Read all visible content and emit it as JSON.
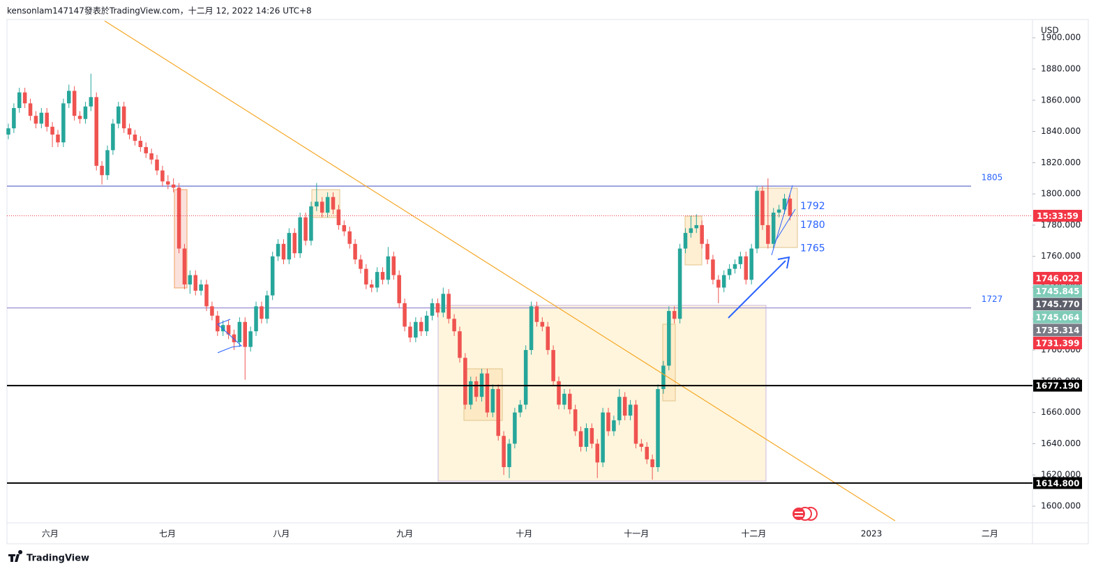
{
  "header": "kensonlam147147發表於TradingView.com，十二月 12, 2022 14:26 UTC+8",
  "footer": "TradingView",
  "chart_data": {
    "type": "candlestick",
    "currency": "USD",
    "up_color": "#26a69a",
    "down_color": "#ef5350",
    "xlim": [
      -0.25,
      185.8
    ],
    "ylim": [
      1589.3,
      1910.8
    ],
    "xticks": [
      {
        "value": 7.6,
        "label": "六月"
      },
      {
        "value": 28.9,
        "label": "七月"
      },
      {
        "value": 49.6,
        "label": "八月"
      },
      {
        "value": 72.0,
        "label": "九月"
      },
      {
        "value": 93.7,
        "label": "十月"
      },
      {
        "value": 114.1,
        "label": "十一月"
      },
      {
        "value": 135.4,
        "label": "十二月"
      },
      {
        "value": 156.8,
        "label": "2023"
      },
      {
        "value": 178.3,
        "label": "二月"
      }
    ],
    "yticks": [
      {
        "value": 1600,
        "label": "1600.000"
      },
      {
        "value": 1620,
        "label": "1620.000"
      },
      {
        "value": 1640,
        "label": "1640.000"
      },
      {
        "value": 1660,
        "label": "1660.000"
      },
      {
        "value": 1680,
        "label": "1680.000"
      },
      {
        "value": 1700,
        "label": "1700.000"
      },
      {
        "value": 1720,
        "label": "1720.000"
      },
      {
        "value": 1740,
        "label": "1740.000"
      },
      {
        "value": 1760,
        "label": "1760.000"
      },
      {
        "value": 1780,
        "label": "1780.000"
      },
      {
        "value": 1800,
        "label": "1800.000"
      },
      {
        "value": 1820,
        "label": "1820.000"
      },
      {
        "value": 1840,
        "label": "1840.000"
      },
      {
        "value": 1860,
        "label": "1860.000"
      },
      {
        "value": 1880,
        "label": "1880.000"
      },
      {
        "value": 1900,
        "label": "1900.000"
      }
    ],
    "ohlc": [
      [
        1838,
        1845,
        1835,
        1842
      ],
      [
        1842,
        1858,
        1839,
        1855
      ],
      [
        1855,
        1868,
        1852,
        1865
      ],
      [
        1865,
        1868,
        1855,
        1858
      ],
      [
        1858,
        1861,
        1847,
        1850
      ],
      [
        1850,
        1853,
        1842,
        1845
      ],
      [
        1845,
        1855,
        1842,
        1852
      ],
      [
        1852,
        1855,
        1840,
        1843
      ],
      [
        1843,
        1846,
        1830,
        1838
      ],
      [
        1838,
        1841,
        1830,
        1833
      ],
      [
        1833,
        1861,
        1830,
        1858
      ],
      [
        1858,
        1870,
        1855,
        1866
      ],
      [
        1866,
        1869,
        1847,
        1850
      ],
      [
        1850,
        1853,
        1845,
        1848
      ],
      [
        1848,
        1859,
        1845,
        1856
      ],
      [
        1856,
        1877,
        1853,
        1862
      ],
      [
        1862,
        1865,
        1815,
        1818
      ],
      [
        1818,
        1821,
        1806,
        1812
      ],
      [
        1812,
        1831,
        1809,
        1828
      ],
      [
        1828,
        1848,
        1825,
        1845
      ],
      [
        1845,
        1859,
        1842,
        1856
      ],
      [
        1856,
        1859,
        1839,
        1842
      ],
      [
        1842,
        1845,
        1835,
        1838
      ],
      [
        1838,
        1841,
        1831,
        1834
      ],
      [
        1834,
        1837,
        1827,
        1830
      ],
      [
        1830,
        1833,
        1823,
        1826
      ],
      [
        1826,
        1829,
        1819,
        1822
      ],
      [
        1822,
        1825,
        1812,
        1815
      ],
      [
        1815,
        1818,
        1805,
        1808
      ],
      [
        1808,
        1812,
        1803,
        1806
      ],
      [
        1806,
        1810,
        1801,
        1804
      ],
      [
        1804,
        1807,
        1762,
        1765
      ],
      [
        1765,
        1768,
        1739,
        1742
      ],
      [
        1742,
        1751,
        1736,
        1748
      ],
      [
        1748,
        1751,
        1735,
        1738
      ],
      [
        1738,
        1745,
        1735,
        1742
      ],
      [
        1742,
        1745,
        1725,
        1728
      ],
      [
        1728,
        1731,
        1719,
        1722
      ],
      [
        1722,
        1725,
        1709,
        1712
      ],
      [
        1712,
        1719,
        1709,
        1716
      ],
      [
        1716,
        1719,
        1707,
        1710
      ],
      [
        1710,
        1713,
        1700,
        1705
      ],
      [
        1705,
        1721,
        1702,
        1718
      ],
      [
        1718,
        1721,
        1681,
        1702
      ],
      [
        1702,
        1715,
        1699,
        1712
      ],
      [
        1712,
        1731,
        1709,
        1728
      ],
      [
        1728,
        1731,
        1717,
        1720
      ],
      [
        1720,
        1738,
        1717,
        1735
      ],
      [
        1735,
        1763,
        1732,
        1760
      ],
      [
        1760,
        1771,
        1757,
        1768
      ],
      [
        1768,
        1771,
        1755,
        1758
      ],
      [
        1758,
        1778,
        1755,
        1775
      ],
      [
        1775,
        1778,
        1759,
        1762
      ],
      [
        1762,
        1788,
        1759,
        1785
      ],
      [
        1785,
        1788,
        1767,
        1770
      ],
      [
        1770,
        1795,
        1767,
        1792
      ],
      [
        1792,
        1807,
        1789,
        1795
      ],
      [
        1795,
        1798,
        1785,
        1788
      ],
      [
        1788,
        1801,
        1785,
        1798
      ],
      [
        1798,
        1801,
        1787,
        1790
      ],
      [
        1790,
        1793,
        1777,
        1780
      ],
      [
        1780,
        1783,
        1773,
        1776
      ],
      [
        1776,
        1779,
        1765,
        1768
      ],
      [
        1768,
        1771,
        1755,
        1758
      ],
      [
        1758,
        1761,
        1749,
        1752
      ],
      [
        1752,
        1755,
        1739,
        1742
      ],
      [
        1742,
        1745,
        1737,
        1740
      ],
      [
        1740,
        1753,
        1737,
        1750
      ],
      [
        1750,
        1753,
        1742,
        1745
      ],
      [
        1745,
        1766,
        1742,
        1760
      ],
      [
        1760,
        1763,
        1745,
        1748
      ],
      [
        1748,
        1751,
        1727,
        1730
      ],
      [
        1730,
        1733,
        1712,
        1715
      ],
      [
        1715,
        1718,
        1705,
        1708
      ],
      [
        1708,
        1721,
        1705,
        1718
      ],
      [
        1718,
        1721,
        1709,
        1712
      ],
      [
        1712,
        1725,
        1709,
        1722
      ],
      [
        1722,
        1733,
        1719,
        1730
      ],
      [
        1730,
        1733,
        1721,
        1724
      ],
      [
        1724,
        1740,
        1721,
        1736
      ],
      [
        1736,
        1739,
        1717,
        1720
      ],
      [
        1720,
        1723,
        1709,
        1712
      ],
      [
        1712,
        1715,
        1692,
        1695
      ],
      [
        1695,
        1698,
        1662,
        1665
      ],
      [
        1665,
        1683,
        1662,
        1680
      ],
      [
        1680,
        1683,
        1667,
        1670
      ],
      [
        1670,
        1688,
        1667,
        1685
      ],
      [
        1685,
        1688,
        1657,
        1660
      ],
      [
        1660,
        1678,
        1657,
        1675
      ],
      [
        1675,
        1678,
        1642,
        1645
      ],
      [
        1645,
        1648,
        1620,
        1625
      ],
      [
        1625,
        1643,
        1618,
        1640
      ],
      [
        1640,
        1663,
        1637,
        1660
      ],
      [
        1660,
        1668,
        1657,
        1665
      ],
      [
        1665,
        1703,
        1662,
        1700
      ],
      [
        1700,
        1731,
        1697,
        1728
      ],
      [
        1728,
        1731,
        1715,
        1718
      ],
      [
        1718,
        1721,
        1712,
        1715
      ],
      [
        1715,
        1718,
        1697,
        1700
      ],
      [
        1700,
        1703,
        1677,
        1680
      ],
      [
        1680,
        1683,
        1662,
        1665
      ],
      [
        1665,
        1675,
        1662,
        1672
      ],
      [
        1672,
        1675,
        1659,
        1662
      ],
      [
        1662,
        1665,
        1645,
        1648
      ],
      [
        1648,
        1651,
        1635,
        1638
      ],
      [
        1638,
        1653,
        1635,
        1650
      ],
      [
        1650,
        1653,
        1637,
        1640
      ],
      [
        1640,
        1643,
        1618,
        1628
      ],
      [
        1628,
        1663,
        1625,
        1660
      ],
      [
        1660,
        1663,
        1645,
        1648
      ],
      [
        1648,
        1658,
        1645,
        1655
      ],
      [
        1655,
        1675,
        1652,
        1670
      ],
      [
        1670,
        1673,
        1655,
        1658
      ],
      [
        1658,
        1668,
        1655,
        1665
      ],
      [
        1665,
        1668,
        1637,
        1640
      ],
      [
        1640,
        1643,
        1635,
        1638
      ],
      [
        1638,
        1641,
        1627,
        1630
      ],
      [
        1630,
        1633,
        1617,
        1625
      ],
      [
        1625,
        1678,
        1622,
        1675
      ],
      [
        1675,
        1693,
        1672,
        1690
      ],
      [
        1690,
        1728,
        1687,
        1725
      ],
      [
        1725,
        1728,
        1717,
        1720
      ],
      [
        1720,
        1768,
        1717,
        1765
      ],
      [
        1765,
        1778,
        1762,
        1775
      ],
      [
        1775,
        1786,
        1772,
        1778
      ],
      [
        1778,
        1787,
        1775,
        1780
      ],
      [
        1780,
        1783,
        1765,
        1768
      ],
      [
        1768,
        1771,
        1755,
        1758
      ],
      [
        1758,
        1761,
        1742,
        1745
      ],
      [
        1745,
        1748,
        1730,
        1740
      ],
      [
        1740,
        1751,
        1737,
        1748
      ],
      [
        1748,
        1755,
        1745,
        1752
      ],
      [
        1752,
        1758,
        1749,
        1755
      ],
      [
        1755,
        1763,
        1752,
        1760
      ],
      [
        1760,
        1763,
        1742,
        1745
      ],
      [
        1745,
        1768,
        1742,
        1765
      ],
      [
        1765,
        1805,
        1762,
        1802
      ],
      [
        1802,
        1805,
        1777,
        1780
      ],
      [
        1780,
        1810,
        1765,
        1768
      ],
      [
        1768,
        1791,
        1765,
        1788
      ],
      [
        1788,
        1793,
        1785,
        1790
      ],
      [
        1790,
        1800,
        1787,
        1797
      ],
      [
        1797,
        1800,
        1783,
        1786
      ]
    ],
    "levels": [
      {
        "value": 1805,
        "label": "1805",
        "color": "#7f86d6"
      },
      {
        "value": 1727,
        "label": "1727",
        "color": "#a99bd8"
      }
    ],
    "bold_levels": [
      {
        "value": 1677.19,
        "label": "1677.190"
      },
      {
        "value": 1614.8,
        "label": "1614.800"
      }
    ],
    "annotations": [
      {
        "value": 1792,
        "label": "1792"
      },
      {
        "value": 1780,
        "label": "1780"
      },
      {
        "value": 1765,
        "label": "1765"
      }
    ],
    "current_price": 1786,
    "countdown": "15:33:59",
    "current_color": "#f23645",
    "price_tags": [
      {
        "value": 1746.022,
        "label": "1746.022",
        "color": "#f23645"
      },
      {
        "value": 1745.845,
        "label": "1745.845",
        "color": "#7fcbb8"
      },
      {
        "value": 1745.77,
        "label": "1745.770",
        "color": "#5d606b"
      },
      {
        "value": 1745.064,
        "label": "1745.064",
        "color": "#7fcbb8"
      },
      {
        "value": 1735.314,
        "label": "1735.314",
        "color": "#787b86"
      },
      {
        "value": 1731.399,
        "label": "1731.399",
        "color": "#f23645"
      }
    ]
  }
}
